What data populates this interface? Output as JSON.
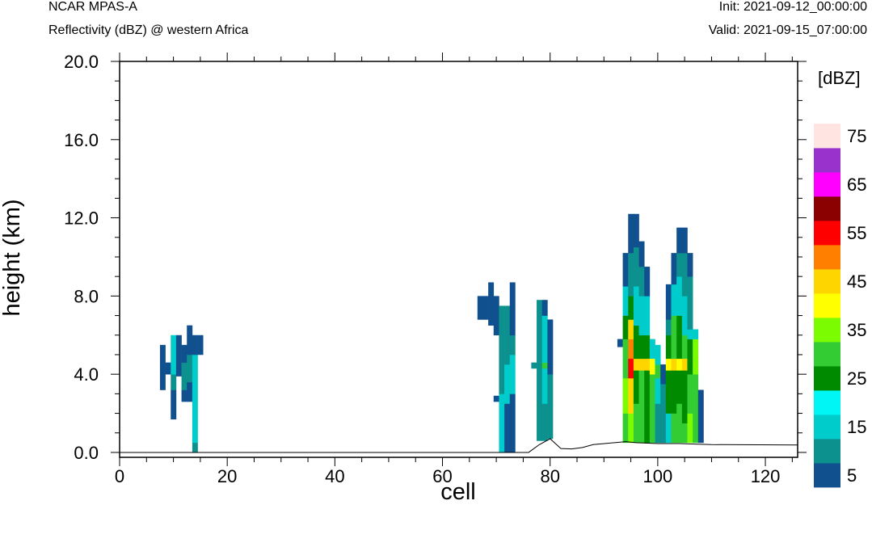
{
  "header": {
    "model": "NCAR MPAS-A",
    "field": "Reflectivity (dBZ) @ western Africa",
    "init": "Init: 2021-09-12_00:00:00",
    "valid": "Valid: 2021-09-15_07:00:00"
  },
  "chart_data": {
    "type": "heatmap",
    "xlabel": "cell",
    "ylabel": "height (km)",
    "xlim": [
      0,
      126
    ],
    "ylim": [
      -0.25,
      20
    ],
    "xticks": [
      0,
      20,
      40,
      60,
      80,
      100,
      120
    ],
    "xtick_labels": [
      "0",
      "20",
      "40",
      "60",
      "80",
      "100",
      "120"
    ],
    "yticks": [
      0,
      4,
      8,
      12,
      16,
      20
    ],
    "ytick_labels": [
      "0.0",
      "4.0",
      "8.0",
      "12.0",
      "16.0",
      "20.0"
    ],
    "colorbar": {
      "title": "[dBZ]",
      "levels": [
        5,
        10,
        15,
        20,
        25,
        30,
        35,
        40,
        45,
        50,
        55,
        60,
        65,
        70,
        75
      ],
      "labels": [
        "5",
        "15",
        "25",
        "35",
        "45",
        "55",
        "65",
        "75"
      ],
      "colors": [
        "#11508f",
        "#0c918e",
        "#00cccc",
        "#00f5f5",
        "#008a00",
        "#33cc33",
        "#7cfc00",
        "#ffff00",
        "#ffd500",
        "#ff8000",
        "#ff0000",
        "#8b0000",
        "#ff00ff",
        "#9932cc",
        "#ffe4e1"
      ]
    },
    "terrain": [
      [
        0,
        0
      ],
      [
        65,
        0
      ],
      [
        76,
        0
      ],
      [
        78,
        0.4
      ],
      [
        80,
        0.7
      ],
      [
        82,
        0.2
      ],
      [
        84,
        0.18
      ],
      [
        86,
        0.25
      ],
      [
        88,
        0.4
      ],
      [
        94,
        0.55
      ],
      [
        96,
        0.5
      ],
      [
        100,
        0.45
      ],
      [
        104,
        0.45
      ],
      [
        110,
        0.4
      ],
      [
        126,
        0.38
      ]
    ],
    "columns": [
      {
        "cell": 8,
        "segments": [
          [
            3.2,
            5.5,
            5
          ]
        ]
      },
      {
        "cell": 9,
        "segments": [
          [
            4.0,
            4.6,
            5
          ]
        ]
      },
      {
        "cell": 10,
        "segments": [
          [
            1.7,
            3.2,
            5
          ],
          [
            3.2,
            4.0,
            10
          ],
          [
            4.0,
            6.0,
            15
          ]
        ]
      },
      {
        "cell": 11,
        "segments": [
          [
            3.9,
            6.0,
            5
          ]
        ]
      },
      {
        "cell": 12,
        "segments": [
          [
            2.6,
            3.2,
            5
          ],
          [
            3.2,
            4.6,
            10
          ],
          [
            4.6,
            5.5,
            5
          ]
        ]
      },
      {
        "cell": 13,
        "segments": [
          [
            2.6,
            3.6,
            5
          ],
          [
            3.6,
            5.0,
            10
          ],
          [
            5.0,
            6.5,
            5
          ]
        ]
      },
      {
        "cell": 14,
        "segments": [
          [
            0.0,
            0.5,
            10
          ],
          [
            0.5,
            5.0,
            15
          ],
          [
            5.0,
            6.0,
            5
          ]
        ]
      },
      {
        "cell": 15,
        "segments": [
          [
            5.0,
            6.0,
            5
          ]
        ]
      },
      {
        "cell": 67,
        "segments": [
          [
            6.8,
            8.0,
            5
          ]
        ]
      },
      {
        "cell": 68,
        "segments": [
          [
            6.8,
            8.0,
            5
          ]
        ]
      },
      {
        "cell": 69,
        "segments": [
          [
            6.5,
            8.7,
            5
          ]
        ]
      },
      {
        "cell": 70,
        "segments": [
          [
            2.6,
            2.9,
            5
          ],
          [
            6.0,
            8.0,
            5
          ]
        ]
      },
      {
        "cell": 71,
        "segments": [
          [
            0.0,
            3.0,
            15
          ],
          [
            3.0,
            4.5,
            10
          ],
          [
            4.5,
            7.5,
            10
          ]
        ]
      },
      {
        "cell": 72,
        "segments": [
          [
            0.0,
            2.5,
            5
          ],
          [
            2.5,
            4.5,
            15
          ],
          [
            4.5,
            7.5,
            10
          ]
        ]
      },
      {
        "cell": 73,
        "segments": [
          [
            0.0,
            3.0,
            5
          ],
          [
            3.0,
            5.0,
            15
          ],
          [
            5.0,
            6.0,
            10
          ],
          [
            6.0,
            8.7,
            5
          ]
        ]
      },
      {
        "cell": 77,
        "segments": [
          [
            4.3,
            4.6,
            10
          ]
        ]
      },
      {
        "cell": 78,
        "segments": [
          [
            0.6,
            4.6,
            10
          ],
          [
            4.6,
            7.8,
            10
          ]
        ]
      },
      {
        "cell": 79,
        "segments": [
          [
            0.6,
            2.5,
            10
          ],
          [
            2.5,
            4.3,
            15
          ],
          [
            4.3,
            4.6,
            30
          ],
          [
            4.6,
            7.0,
            15
          ],
          [
            7.0,
            7.8,
            5
          ]
        ]
      },
      {
        "cell": 80,
        "segments": [
          [
            0.7,
            4.0,
            10
          ],
          [
            4.0,
            6.8,
            5
          ]
        ]
      },
      {
        "cell": 93,
        "segments": [
          [
            5.4,
            5.8,
            5
          ]
        ]
      },
      {
        "cell": 94,
        "segments": [
          [
            0.5,
            2.0,
            30
          ],
          [
            2.0,
            3.8,
            35
          ],
          [
            3.8,
            5.8,
            30
          ],
          [
            5.8,
            7.0,
            25
          ],
          [
            7.0,
            8.5,
            15
          ],
          [
            8.5,
            10.2,
            5
          ]
        ]
      },
      {
        "cell": 95,
        "segments": [
          [
            0.5,
            2.0,
            35
          ],
          [
            2.0,
            3.8,
            45
          ],
          [
            3.8,
            4.8,
            55
          ],
          [
            4.8,
            5.8,
            50
          ],
          [
            5.8,
            6.8,
            45
          ],
          [
            6.8,
            8.0,
            25
          ],
          [
            8.0,
            10.2,
            10
          ],
          [
            10.2,
            12.2,
            5
          ]
        ]
      },
      {
        "cell": 96,
        "segments": [
          [
            0.5,
            2.5,
            30
          ],
          [
            2.5,
            4.2,
            25
          ],
          [
            4.2,
            4.8,
            45
          ],
          [
            4.8,
            6.5,
            25
          ],
          [
            6.5,
            8.5,
            15
          ],
          [
            8.5,
            10.5,
            10
          ],
          [
            10.5,
            12.2,
            5
          ]
        ]
      },
      {
        "cell": 97,
        "segments": [
          [
            0.5,
            4.2,
            30
          ],
          [
            4.2,
            4.8,
            45
          ],
          [
            4.8,
            6.0,
            25
          ],
          [
            6.0,
            8.0,
            15
          ],
          [
            8.0,
            9.5,
            10
          ],
          [
            9.5,
            10.8,
            5
          ]
        ]
      },
      {
        "cell": 98,
        "segments": [
          [
            0.5,
            4.2,
            25
          ],
          [
            4.2,
            4.8,
            45
          ],
          [
            4.8,
            6.0,
            25
          ],
          [
            6.0,
            8.0,
            15
          ],
          [
            8.0,
            9.5,
            5
          ]
        ]
      },
      {
        "cell": 99,
        "segments": [
          [
            0.5,
            4.0,
            30
          ],
          [
            4.0,
            4.8,
            40
          ],
          [
            4.8,
            5.8,
            15
          ]
        ]
      },
      {
        "cell": 100,
        "segments": [
          [
            0.5,
            2.5,
            10
          ],
          [
            2.5,
            3.8,
            15
          ],
          [
            3.8,
            4.5,
            30
          ],
          [
            4.5,
            5.5,
            15
          ]
        ]
      },
      {
        "cell": 101,
        "segments": [
          [
            0.5,
            3.5,
            10
          ],
          [
            3.5,
            4.5,
            5
          ]
        ]
      },
      {
        "cell": 102,
        "segments": [
          [
            0.5,
            2.0,
            15
          ],
          [
            2.0,
            4.2,
            25
          ],
          [
            4.2,
            4.8,
            40
          ],
          [
            4.8,
            6.0,
            25
          ],
          [
            6.0,
            6.8,
            10
          ],
          [
            6.8,
            8.6,
            5
          ]
        ]
      },
      {
        "cell": 103,
        "segments": [
          [
            0.5,
            2.0,
            30
          ],
          [
            2.0,
            4.2,
            25
          ],
          [
            4.2,
            4.8,
            45
          ],
          [
            4.8,
            7.0,
            30
          ],
          [
            7.0,
            8.6,
            15
          ],
          [
            8.6,
            10.2,
            5
          ]
        ]
      },
      {
        "cell": 104,
        "segments": [
          [
            0.5,
            2.5,
            30
          ],
          [
            2.5,
            4.2,
            25
          ],
          [
            4.2,
            4.8,
            40
          ],
          [
            4.8,
            7.0,
            25
          ],
          [
            7.0,
            9.0,
            15
          ],
          [
            9.0,
            10.2,
            10
          ],
          [
            10.2,
            11.5,
            5
          ]
        ]
      },
      {
        "cell": 105,
        "segments": [
          [
            0.5,
            1.5,
            30
          ],
          [
            1.5,
            4.2,
            25
          ],
          [
            4.2,
            4.8,
            45
          ],
          [
            4.8,
            6.0,
            30
          ],
          [
            6.0,
            8.0,
            15
          ],
          [
            8.0,
            10.2,
            10
          ],
          [
            10.2,
            11.5,
            5
          ]
        ]
      },
      {
        "cell": 106,
        "segments": [
          [
            0.5,
            2.0,
            35
          ],
          [
            2.0,
            4.0,
            30
          ],
          [
            4.0,
            5.8,
            25
          ],
          [
            5.8,
            6.3,
            15
          ],
          [
            6.3,
            9.0,
            10
          ],
          [
            9.0,
            10.2,
            5
          ]
        ]
      },
      {
        "cell": 107,
        "segments": [
          [
            0.5,
            1.5,
            30
          ],
          [
            1.5,
            4.0,
            30
          ],
          [
            4.0,
            5.8,
            35
          ],
          [
            5.8,
            6.3,
            15
          ]
        ]
      },
      {
        "cell": 108,
        "segments": [
          [
            0.5,
            3.2,
            5
          ]
        ]
      }
    ]
  }
}
